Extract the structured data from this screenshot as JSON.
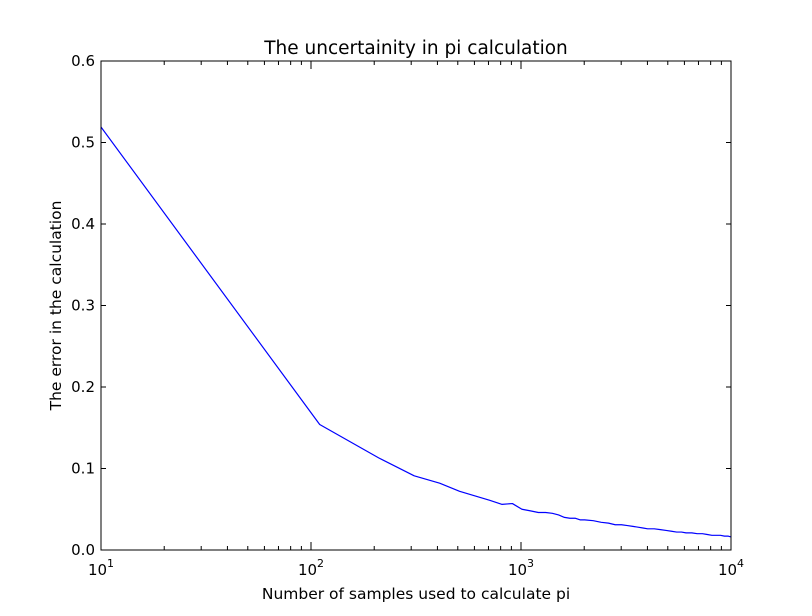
{
  "chart_data": {
    "type": "line",
    "title": "The uncertainity in pi calculation",
    "xlabel": "Number of samples used to calculate pi",
    "ylabel": "The error in the calculation",
    "xscale": "log",
    "xlim": [
      10,
      10000
    ],
    "ylim": [
      0,
      0.6
    ],
    "grid": false,
    "x_ticks": [
      {
        "value": 10,
        "base": "10",
        "exp": "1"
      },
      {
        "value": 100,
        "base": "10",
        "exp": "2"
      },
      {
        "value": 1000,
        "base": "10",
        "exp": "3"
      },
      {
        "value": 10000,
        "base": "10",
        "exp": "4"
      }
    ],
    "y_ticks": [
      {
        "value": 0.0,
        "label": "0.0"
      },
      {
        "value": 0.1,
        "label": "0.1"
      },
      {
        "value": 0.2,
        "label": "0.2"
      },
      {
        "value": 0.3,
        "label": "0.3"
      },
      {
        "value": 0.4,
        "label": "0.4"
      },
      {
        "value": 0.5,
        "label": "0.5"
      },
      {
        "value": 0.6,
        "label": "0.6"
      }
    ],
    "series": [
      {
        "color": "#0000ff",
        "x": [
          10,
          110,
          210,
          310,
          410,
          510,
          610,
          710,
          810,
          910,
          1010,
          1110,
          1210,
          1310,
          1410,
          1510,
          1610,
          1710,
          1810,
          1910,
          2010,
          2210,
          2410,
          2610,
          2810,
          3010,
          3210,
          3410,
          3610,
          3810,
          4010,
          4310,
          4610,
          4910,
          5210,
          5510,
          5810,
          6110,
          6510,
          6910,
          7310,
          7710,
          8110,
          8510,
          8910,
          9310,
          9710,
          10000
        ],
        "y": [
          0.519,
          0.154,
          0.113,
          0.091,
          0.082,
          0.072,
          0.066,
          0.061,
          0.056,
          0.057,
          0.05,
          0.048,
          0.046,
          0.046,
          0.045,
          0.043,
          0.04,
          0.039,
          0.039,
          0.037,
          0.037,
          0.036,
          0.034,
          0.033,
          0.031,
          0.031,
          0.03,
          0.029,
          0.028,
          0.027,
          0.026,
          0.026,
          0.025,
          0.024,
          0.023,
          0.022,
          0.022,
          0.021,
          0.021,
          0.02,
          0.02,
          0.019,
          0.018,
          0.018,
          0.018,
          0.017,
          0.017,
          0.016
        ]
      }
    ]
  }
}
